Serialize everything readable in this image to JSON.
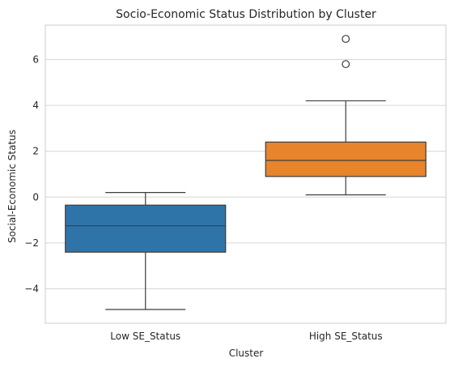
{
  "chart_data": {
    "type": "box",
    "title": "Socio-Economic Status Distribution by Cluster",
    "xlabel": "Cluster",
    "ylabel": "Social-Economic Status",
    "ylim": [
      -5.5,
      7.5
    ],
    "yticks": [
      -4,
      -2,
      0,
      2,
      4,
      6
    ],
    "ytick_labels": [
      "−4",
      "−2",
      "0",
      "2",
      "4",
      "6"
    ],
    "grid": "horizontal",
    "categories": [
      "Low SE_Status",
      "High SE_Status"
    ],
    "boxes": [
      {
        "name": "Low SE_Status",
        "color": "#2f74a8",
        "whisker_low": -4.9,
        "q1": -2.4,
        "median": -1.25,
        "q3": -0.35,
        "whisker_high": 0.2,
        "outliers": []
      },
      {
        "name": "High SE_Status",
        "color": "#e8842c",
        "whisker_low": 0.1,
        "q1": 0.9,
        "median": 1.6,
        "q3": 2.4,
        "whisker_high": 4.2,
        "outliers": [
          5.8,
          6.9
        ]
      }
    ]
  }
}
